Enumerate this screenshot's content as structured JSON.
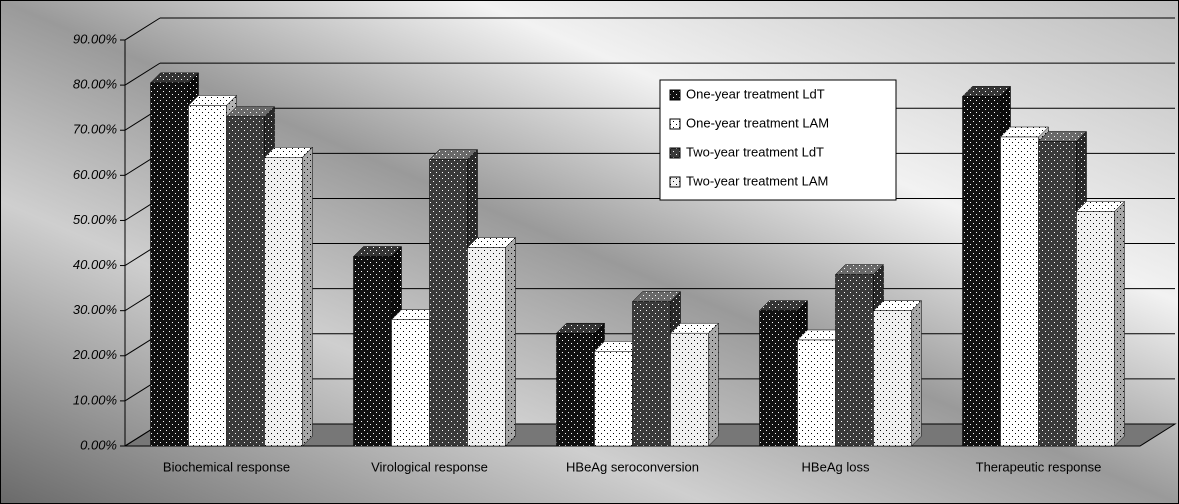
{
  "chart_data": {
    "type": "bar3d",
    "categories": [
      "Biochemical response",
      "Virological response",
      "HBeAg seroconversion",
      "HBeAg loss",
      "Therapeutic response"
    ],
    "series": [
      {
        "name": "One-year treatment LdT",
        "color": "#111111",
        "values": [
          80.5,
          42,
          25,
          30,
          77.5
        ]
      },
      {
        "name": "One-year treatment LAM",
        "color": "#ffffff",
        "values": [
          75.5,
          28,
          21,
          23.5,
          68.5
        ]
      },
      {
        "name": "Two-year treatment LdT",
        "color": "#3a3a3a",
        "values": [
          73,
          63.5,
          32,
          38,
          67.5
        ]
      },
      {
        "name": "Two-year treatment LAM",
        "color": "#f0f0f0",
        "values": [
          64,
          44,
          25,
          30,
          52
        ]
      }
    ],
    "ylim": [
      0,
      90
    ],
    "yticks": [
      {
        "value": 0,
        "label": "0.00%"
      },
      {
        "value": 10,
        "label": "10.00%"
      },
      {
        "value": 20,
        "label": "20.00%"
      },
      {
        "value": 30,
        "label": "30.00%"
      },
      {
        "value": 40,
        "label": "40.00%"
      },
      {
        "value": 50,
        "label": "50.00%"
      },
      {
        "value": 60,
        "label": "60.00%"
      },
      {
        "value": 70,
        "label": "70.00%"
      },
      {
        "value": 80,
        "label": "80.00%"
      },
      {
        "value": 90,
        "label": "90.00%"
      }
    ],
    "grid": true
  }
}
